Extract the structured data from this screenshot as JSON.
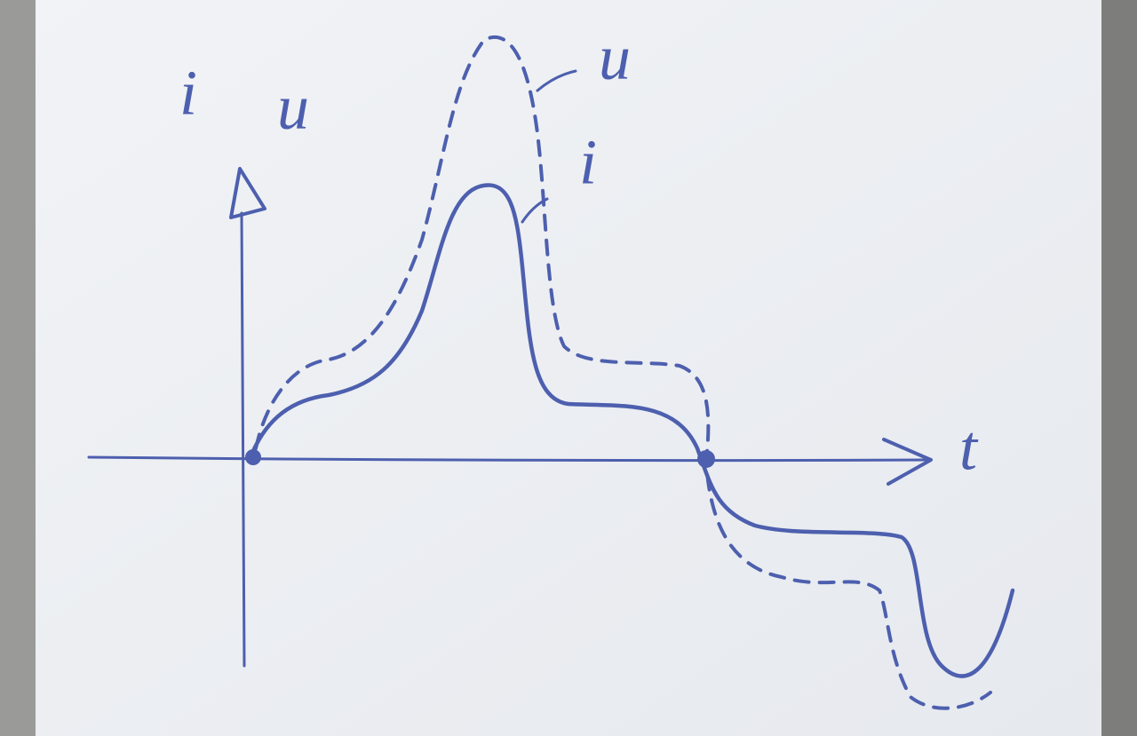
{
  "axes": {
    "y_labels": [
      "i",
      "u"
    ],
    "x_label": "t"
  },
  "curve_labels": [
    "u",
    "i"
  ]
}
